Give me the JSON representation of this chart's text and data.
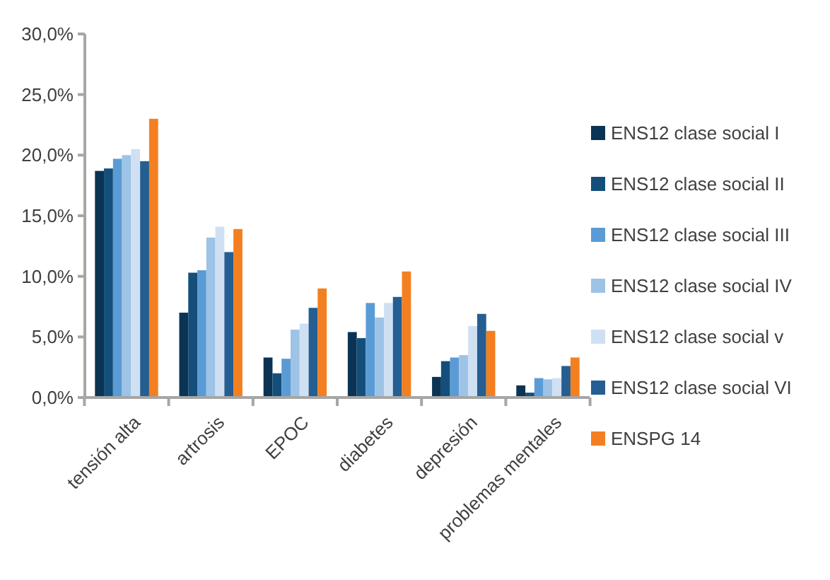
{
  "chart_data": {
    "type": "bar",
    "categories": [
      "tensión alta",
      "artrosis",
      "EPOC",
      "diabetes",
      "depresión",
      "problemas mentales"
    ],
    "series": [
      {
        "name": "ENS12 clase social I",
        "color": "#0b3354",
        "values": [
          18.7,
          7.0,
          3.3,
          5.4,
          1.7,
          1.0
        ]
      },
      {
        "name": "ENS12 clase social II",
        "color": "#134f7a",
        "values": [
          18.9,
          10.3,
          2.0,
          4.9,
          3.0,
          0.4
        ]
      },
      {
        "name": "ENS12 clase social III",
        "color": "#5b9bd5",
        "values": [
          19.7,
          10.5,
          3.2,
          7.8,
          3.3,
          1.6
        ]
      },
      {
        "name": "ENS12 clase social IV",
        "color": "#9dc3e6",
        "values": [
          20.0,
          13.2,
          5.6,
          6.6,
          3.5,
          1.5
        ]
      },
      {
        "name": "ENS12 clase social v",
        "color": "#d0e0f3",
        "values": [
          20.5,
          14.1,
          6.1,
          7.8,
          5.9,
          1.6
        ]
      },
      {
        "name": "ENS12 clase social VI",
        "color": "#255e91",
        "values": [
          19.5,
          12.0,
          7.4,
          8.3,
          6.9,
          2.6
        ]
      },
      {
        "name": "ENSPG 14",
        "color": "#f47f20",
        "values": [
          23.0,
          13.9,
          9.0,
          10.4,
          5.5,
          3.3
        ]
      }
    ],
    "ylim": [
      0,
      30
    ],
    "yticks": [
      {
        "value": 0,
        "label": "0,0%"
      },
      {
        "value": 5,
        "label": "5,0%"
      },
      {
        "value": 10,
        "label": "10,0%"
      },
      {
        "value": 15,
        "label": "15,0%"
      },
      {
        "value": 20,
        "label": "20,0%"
      },
      {
        "value": 25,
        "label": "25,0%"
      },
      {
        "value": 30,
        "label": "30,0%"
      }
    ],
    "grid": false,
    "legend": "right"
  }
}
